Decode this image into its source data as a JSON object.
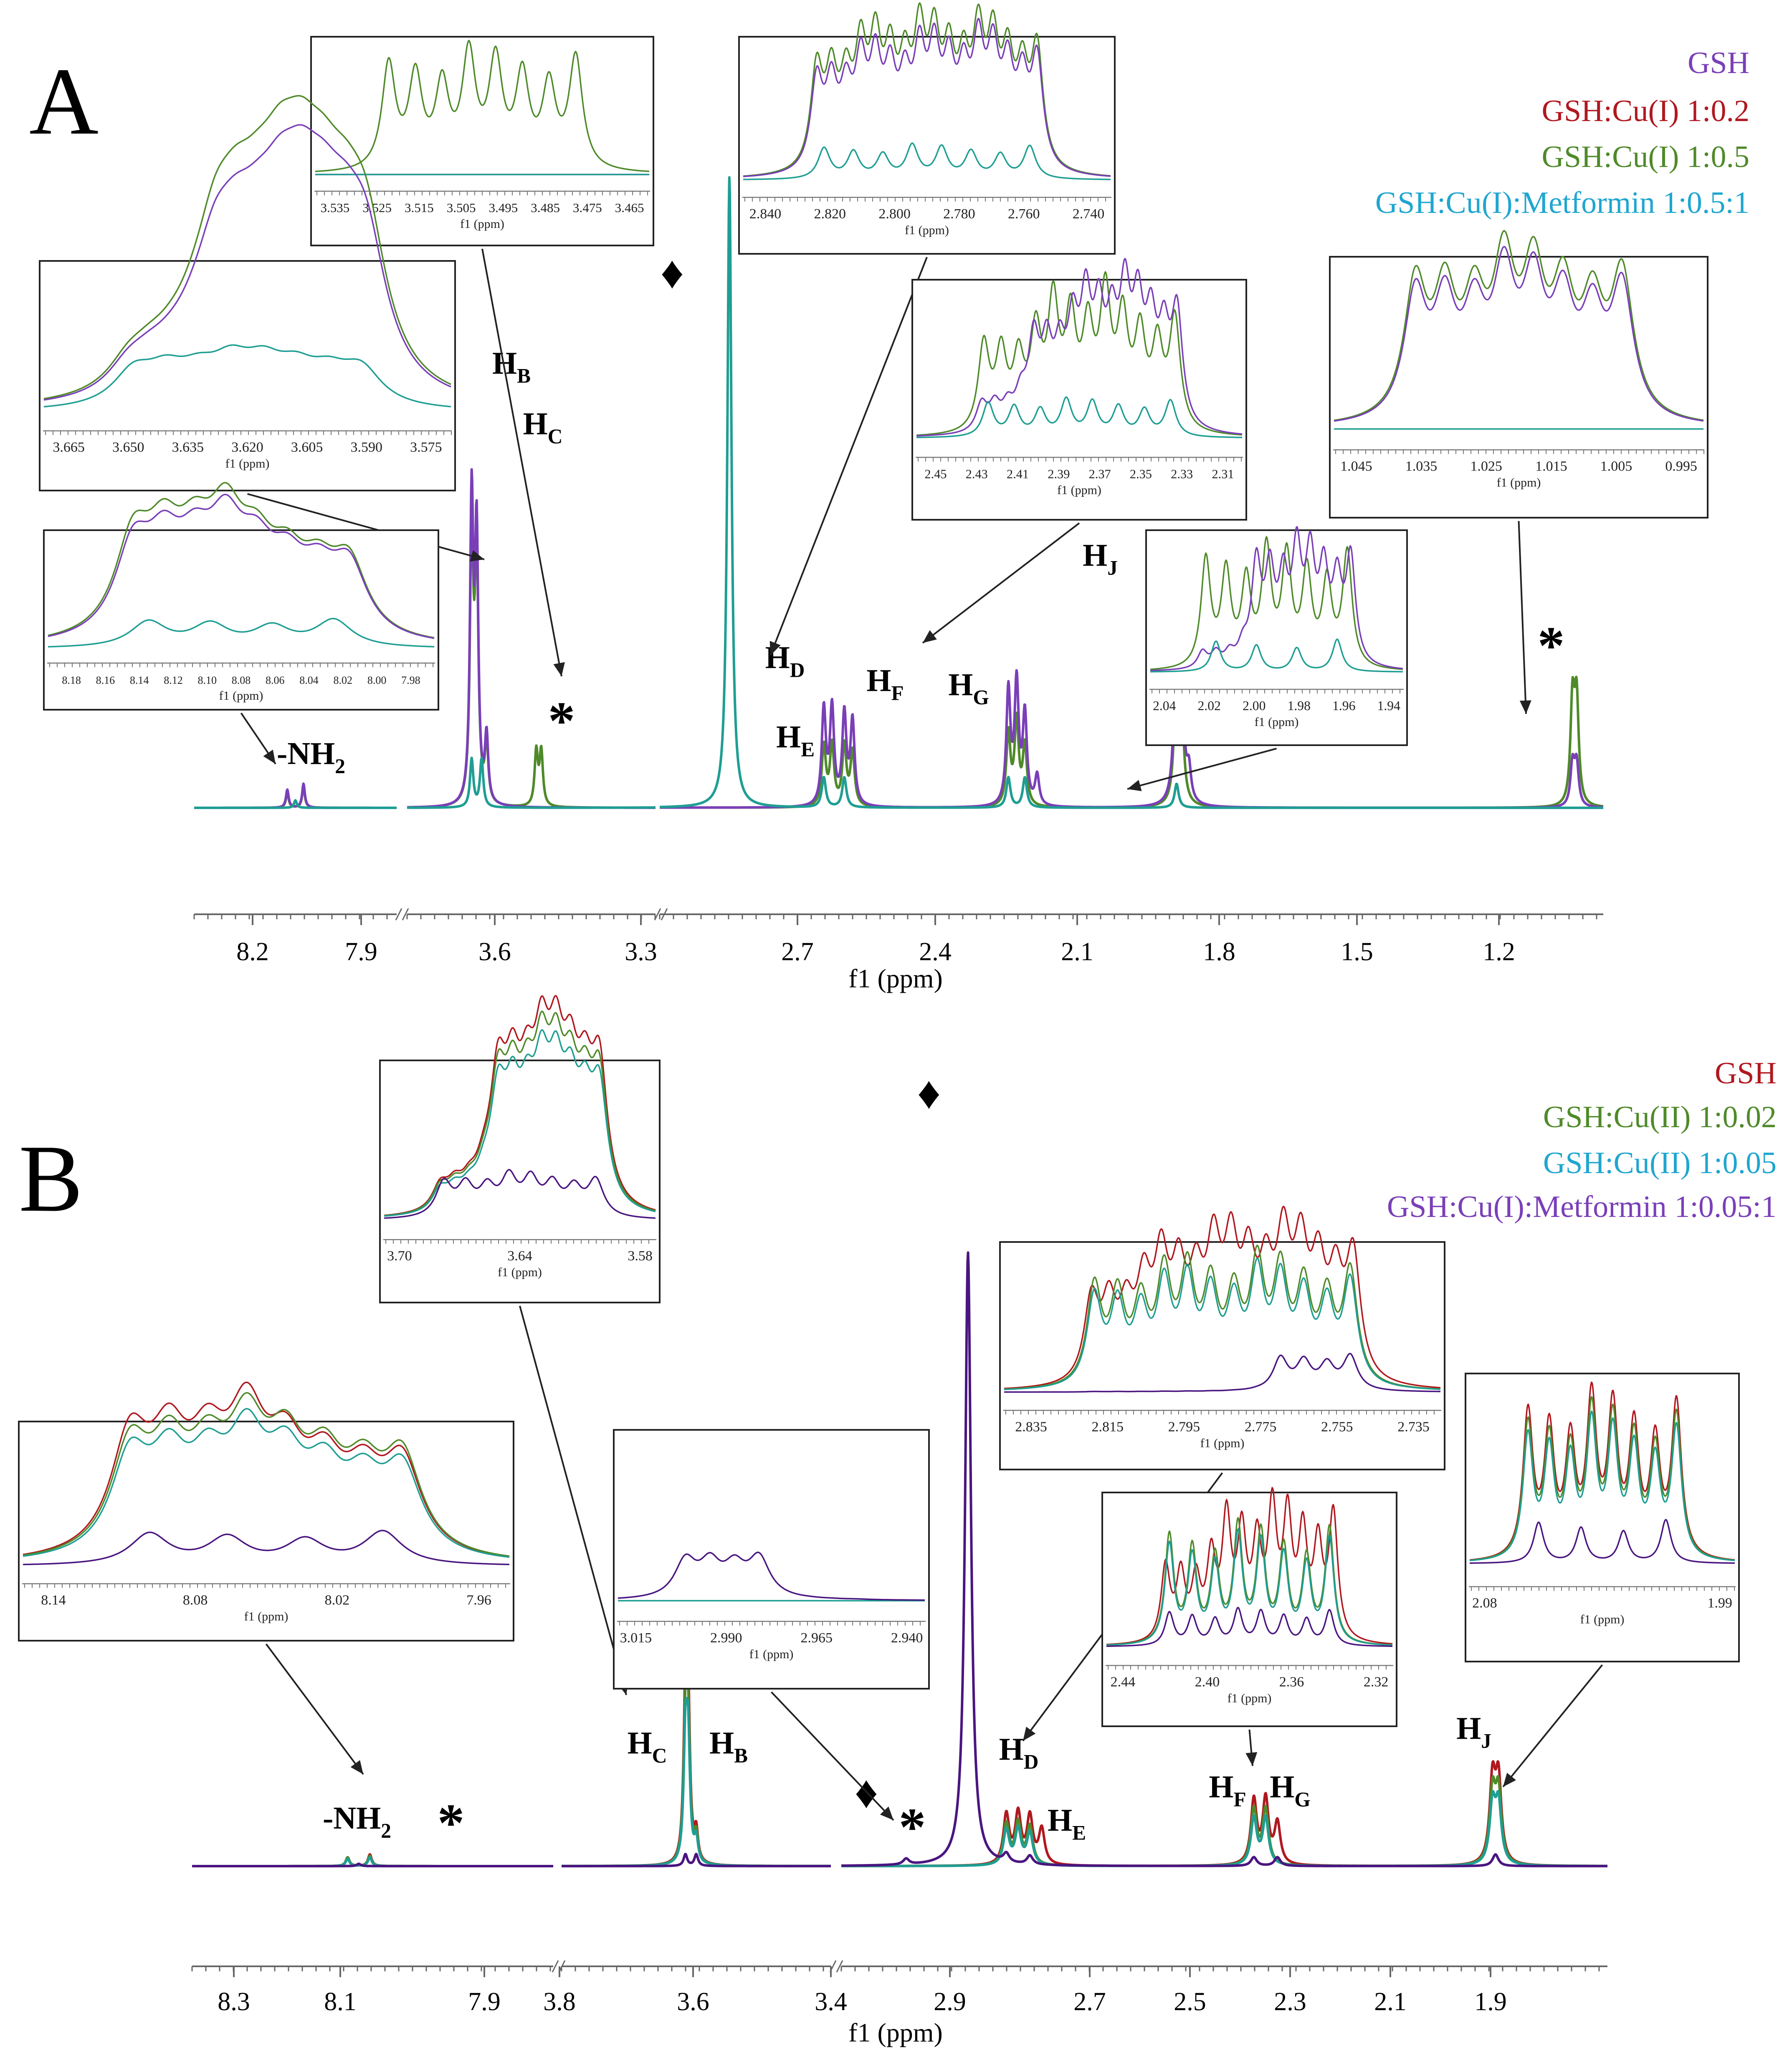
{
  "colors": {
    "purple": "#7a3fb8",
    "red": "#b0181f",
    "green": "#4f8a2a",
    "cyan": "#1fa6d0",
    "darkpurple": "#4a1580",
    "teal": "#1f9e93",
    "text": "#000000",
    "axis": "#555555"
  },
  "chart_data": [
    {
      "type": "line",
      "panel": "A",
      "title": "A",
      "xlabel": "f1 (ppm)",
      "ylabel": "",
      "x_ticks": [
        "8.2",
        "7.9",
        "3.6",
        "3.3",
        "2.7",
        "2.4",
        "2.1",
        "1.8",
        "1.5",
        "1.2"
      ],
      "segments": [
        [
          8.35,
          7.85
        ],
        [
          3.75,
          3.25
        ],
        [
          3.25,
          0.95
        ]
      ],
      "legend": [
        {
          "name": "GSH",
          "color": "#7a3fb8"
        },
        {
          "name": "GSH:Cu(I) 1:0.2",
          "color": "#b0181f"
        },
        {
          "name": "GSH:Cu(I) 1:0.5",
          "color": "#4f8a2a"
        },
        {
          "name": "GSH:Cu(I):Metformin 1:0.5:1",
          "color": "#1fa6d0"
        }
      ],
      "series": [
        {
          "name": "GSH:Cu(I) 1:0.5",
          "color": "#4f8a2a",
          "peaks": [
            [
              8.12,
              0.05
            ],
            [
              8.08,
              0.07
            ],
            [
              3.62,
              0.92
            ],
            [
              3.61,
              0.84
            ],
            [
              3.59,
              0.2
            ],
            [
              3.49,
              0.18
            ],
            [
              3.48,
              0.18
            ],
            [
              2.85,
              0.2
            ],
            [
              2.83,
              0.2
            ],
            [
              2.8,
              0.2
            ],
            [
              2.78,
              0.18
            ],
            [
              2.4,
              0.24
            ],
            [
              2.38,
              0.28
            ],
            [
              2.36,
              0.2
            ],
            [
              1.99,
              0.45
            ],
            [
              1.98,
              0.45
            ],
            [
              1.025,
              0.34
            ],
            [
              1.015,
              0.34
            ]
          ]
        },
        {
          "name": "GSH",
          "color": "#7a3fb8",
          "peaks": [
            [
              8.12,
              0.06
            ],
            [
              8.08,
              0.08
            ],
            [
              3.62,
              1.0
            ],
            [
              3.61,
              0.88
            ],
            [
              3.59,
              0.22
            ],
            [
              2.85,
              0.32
            ],
            [
              2.83,
              0.32
            ],
            [
              2.8,
              0.3
            ],
            [
              2.78,
              0.28
            ],
            [
              2.4,
              0.38
            ],
            [
              2.38,
              0.4
            ],
            [
              2.36,
              0.3
            ],
            [
              2.33,
              0.1
            ],
            [
              1.99,
              0.6
            ],
            [
              1.98,
              0.6
            ],
            [
              1.96,
              0.1
            ],
            [
              1.025,
              0.14
            ],
            [
              1.015,
              0.14
            ]
          ]
        },
        {
          "name": "GSH:Cu(I):Metformin 1:0.5:1",
          "color": "#1f9e93",
          "peaks": [
            [
              8.1,
              0.025
            ],
            [
              3.62,
              0.16
            ],
            [
              3.6,
              0.16
            ],
            [
              3.08,
              2.1
            ],
            [
              2.85,
              0.1
            ],
            [
              2.8,
              0.1
            ],
            [
              2.4,
              0.1
            ],
            [
              2.36,
              0.1
            ],
            [
              1.99,
              0.08
            ]
          ]
        }
      ],
      "labels": [
        {
          "text": "H",
          "sub": "B",
          "ppm": 3.62
        },
        {
          "text": "H",
          "sub": "C",
          "ppm": 3.58
        },
        {
          "text": "-NH",
          "sub": "2",
          "ppm": 8.11
        },
        {
          "text": "H",
          "sub": "D",
          "ppm": 2.77
        },
        {
          "text": "H",
          "sub": "E",
          "ppm": 2.74
        },
        {
          "text": "H",
          "sub": "F",
          "ppm": 2.43
        },
        {
          "text": "H",
          "sub": "G",
          "ppm": 2.33
        },
        {
          "text": "H",
          "sub": "J",
          "ppm": 1.99
        },
        {
          "text": "*",
          "sub": "",
          "ppm": 3.47
        },
        {
          "text": "*",
          "sub": "",
          "ppm": 1.02
        },
        {
          "text": "♦",
          "sub": "",
          "ppm": 3.14
        }
      ],
      "insets": [
        {
          "xlabel": "f1 (ppm)",
          "ticks": [
            "3.535",
            "3.525",
            "3.515",
            "3.505",
            "3.495",
            "3.485",
            "3.475",
            "3.465"
          ]
        },
        {
          "xlabel": "f1 (ppm)",
          "ticks": [
            "2.840",
            "2.820",
            "2.800",
            "2.780",
            "2.760",
            "2.740"
          ]
        },
        {
          "xlabel": "f1 (ppm)",
          "ticks": [
            "3.665",
            "3.650",
            "3.635",
            "3.620",
            "3.605",
            "3.590",
            "3.575"
          ]
        },
        {
          "xlabel": "f1 (ppm)",
          "ticks": [
            "2.45",
            "2.43",
            "2.41",
            "2.39",
            "2.37",
            "2.35",
            "2.33",
            "2.31"
          ]
        },
        {
          "xlabel": "f1 (ppm)",
          "ticks": [
            "1.045",
            "1.035",
            "1.025",
            "1.015",
            "1.005",
            "0.995"
          ]
        },
        {
          "xlabel": "f1 (ppm)",
          "ticks": [
            "8.18",
            "8.16",
            "8.14",
            "8.12",
            "8.10",
            "8.08",
            "8.06",
            "8.04",
            "8.02",
            "8.00",
            "7.98"
          ]
        },
        {
          "xlabel": "f1 (ppm)",
          "ticks": [
            "2.04",
            "2.02",
            "2.00",
            "1.98",
            "1.96",
            "1.94"
          ]
        }
      ]
    },
    {
      "type": "line",
      "panel": "B",
      "title": "B",
      "xlabel": "f1 (ppm)",
      "ylabel": "",
      "x_ticks": [
        "8.3",
        "8.1",
        "7.9",
        "3.8",
        "3.6",
        "3.4",
        "2.9",
        "2.7",
        "2.5",
        "2.3",
        "2.1",
        "1.9"
      ],
      "segments": [
        [
          8.4,
          7.75
        ],
        [
          3.85,
          3.35
        ],
        [
          3.1,
          1.8
        ]
      ],
      "legend": [
        {
          "name": "GSH",
          "color": "#b0181f"
        },
        {
          "name": "GSH:Cu(II) 1:0.02",
          "color": "#4f8a2a"
        },
        {
          "name": "GSH:Cu(II) 1:0.05",
          "color": "#1fa6d0"
        },
        {
          "name": "GSH:Cu(I):Metformin 1:0.05:1",
          "color": "#7a3fb8"
        }
      ],
      "series": [
        {
          "name": "GSH",
          "color": "#b0181f",
          "peaks": [
            [
              8.12,
              0.03
            ],
            [
              8.08,
              0.04
            ],
            [
              3.62,
              0.52
            ],
            [
              3.615,
              0.5
            ],
            [
              3.6,
              0.1
            ],
            [
              2.82,
              0.17
            ],
            [
              2.8,
              0.17
            ],
            [
              2.78,
              0.16
            ],
            [
              2.76,
              0.12
            ],
            [
              2.4,
              0.22
            ],
            [
              2.38,
              0.22
            ],
            [
              2.36,
              0.14
            ],
            [
              1.995,
              0.28
            ],
            [
              1.985,
              0.28
            ]
          ]
        },
        {
          "name": "GSH:Cu(II) 1:0.02",
          "color": "#4f8a2a",
          "peaks": [
            [
              8.12,
              0.03
            ],
            [
              8.08,
              0.035
            ],
            [
              3.62,
              0.45
            ],
            [
              3.615,
              0.44
            ],
            [
              3.6,
              0.09
            ],
            [
              2.82,
              0.14
            ],
            [
              2.8,
              0.14
            ],
            [
              2.78,
              0.13
            ],
            [
              2.4,
              0.19
            ],
            [
              2.38,
              0.19
            ],
            [
              1.995,
              0.24
            ],
            [
              1.985,
              0.24
            ]
          ]
        },
        {
          "name": "GSH:Cu(II) 1:0.05",
          "color": "#1f9e93",
          "peaks": [
            [
              8.12,
              0.025
            ],
            [
              8.08,
              0.03
            ],
            [
              3.62,
              0.4
            ],
            [
              3.615,
              0.39
            ],
            [
              3.6,
              0.08
            ],
            [
              2.82,
              0.12
            ],
            [
              2.8,
              0.12
            ],
            [
              2.78,
              0.11
            ],
            [
              2.4,
              0.16
            ],
            [
              2.38,
              0.16
            ],
            [
              1.995,
              0.2
            ],
            [
              1.985,
              0.2
            ]
          ]
        },
        {
          "name": "GSH:Cu(I):Metformin 1:0.05:1",
          "color": "#4a1580",
          "peaks": [
            [
              8.1,
              0.008
            ],
            [
              3.62,
              0.04
            ],
            [
              3.6,
              0.04
            ],
            [
              2.99,
              0.02
            ],
            [
              2.885,
              2.1
            ],
            [
              2.82,
              0.03
            ],
            [
              2.78,
              0.03
            ],
            [
              2.4,
              0.03
            ],
            [
              2.36,
              0.03
            ],
            [
              1.99,
              0.04
            ]
          ]
        }
      ],
      "labels": [
        {
          "text": "H",
          "sub": "C",
          "ppm": 3.67
        },
        {
          "text": "H",
          "sub": "B",
          "ppm": 3.57
        },
        {
          "text": "-NH",
          "sub": "2",
          "ppm": 8.1
        },
        {
          "text": "*",
          "sub": "",
          "ppm": 7.95
        },
        {
          "text": "H",
          "sub": "D",
          "ppm": 2.78
        },
        {
          "text": "H",
          "sub": "E",
          "ppm": 2.73
        },
        {
          "text": "H",
          "sub": "F",
          "ppm": 2.43
        },
        {
          "text": "H",
          "sub": "G",
          "ppm": 2.35
        },
        {
          "text": "H",
          "sub": "J",
          "ppm": 1.99
        },
        {
          "text": "*",
          "sub": "",
          "ppm": 2.96
        },
        {
          "text": "♦",
          "sub": "",
          "ppm": 3.03
        },
        {
          "text": "♦",
          "sub": "",
          "ppm": 2.88
        }
      ],
      "insets": [
        {
          "xlabel": "f1 (ppm)",
          "ticks": [
            "3.70",
            "3.64",
            "3.58"
          ]
        },
        {
          "xlabel": "f1 (ppm)",
          "ticks": [
            "8.14",
            "8.08",
            "8.02",
            "7.96"
          ]
        },
        {
          "xlabel": "f1 (ppm)",
          "ticks": [
            "3.015",
            "2.990",
            "2.965",
            "2.940"
          ]
        },
        {
          "xlabel": "f1 (ppm)",
          "ticks": [
            "2.835",
            "2.815",
            "2.795",
            "2.775",
            "2.755",
            "2.735"
          ]
        },
        {
          "xlabel": "f1 (ppm)",
          "ticks": [
            "2.44",
            "2.40",
            "2.36",
            "2.32"
          ]
        },
        {
          "xlabel": "f1 (ppm)",
          "ticks": [
            "2.08",
            "1.99"
          ]
        }
      ]
    }
  ]
}
